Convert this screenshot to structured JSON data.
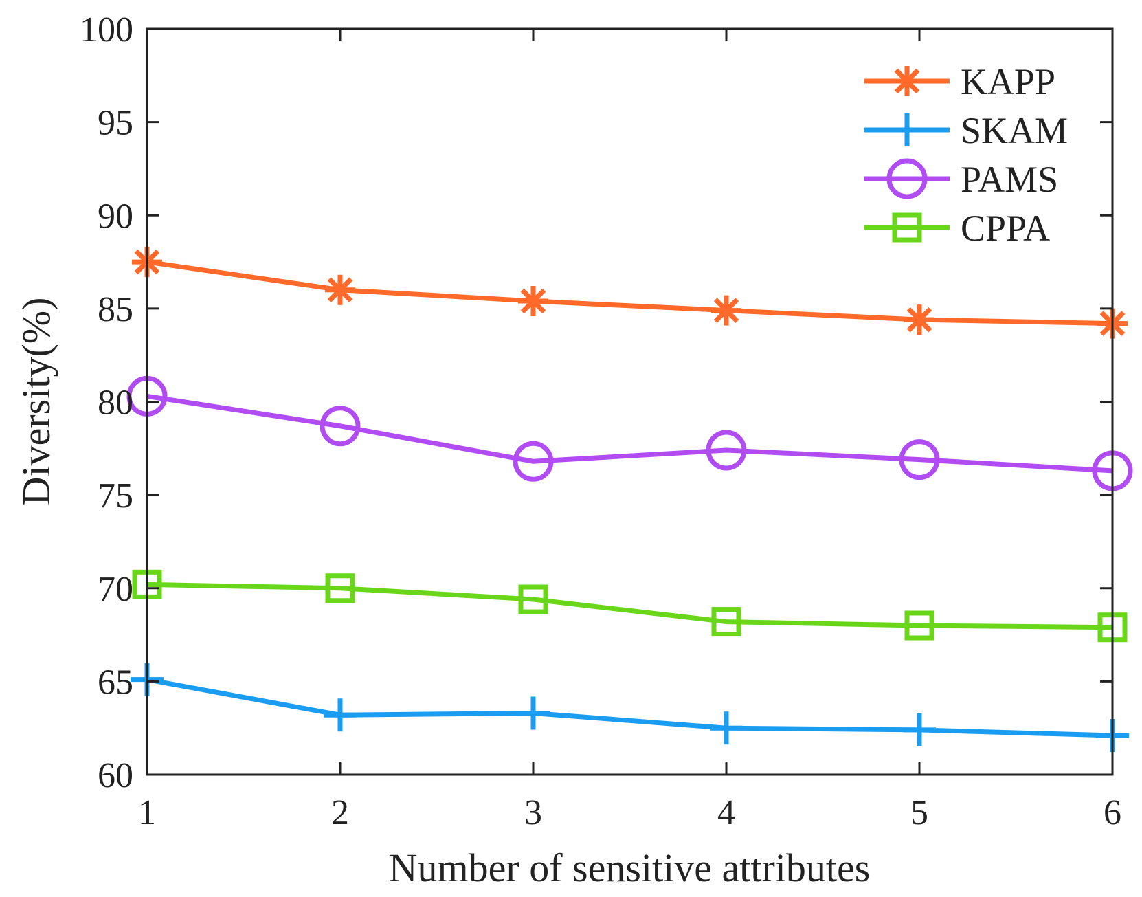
{
  "chart_data": {
    "type": "line",
    "xlabel": "Number of sensitive attributes",
    "ylabel": "Diversity(%)",
    "x": [
      1,
      2,
      3,
      4,
      5,
      6
    ],
    "xlim": [
      1,
      6
    ],
    "ylim": [
      60,
      100
    ],
    "xticks": [
      "1",
      "2",
      "3",
      "4",
      "5",
      "6"
    ],
    "yticks": [
      "60",
      "65",
      "70",
      "75",
      "80",
      "85",
      "90",
      "95",
      "100"
    ],
    "grid": false,
    "legend_position": "top-right",
    "series": [
      {
        "name": "KAPP",
        "marker": "asterisk",
        "color": "#ff6a2b",
        "values": [
          87.5,
          86.0,
          85.4,
          84.9,
          84.4,
          84.2
        ]
      },
      {
        "name": "SKAM",
        "marker": "plus",
        "color": "#1a9cf0",
        "values": [
          65.1,
          63.2,
          63.3,
          62.5,
          62.4,
          62.1
        ]
      },
      {
        "name": "PAMS",
        "marker": "circle",
        "color": "#b04cf2",
        "values": [
          80.3,
          78.7,
          76.8,
          77.4,
          76.9,
          76.3
        ]
      },
      {
        "name": "CPPA",
        "marker": "square",
        "color": "#6ad61a",
        "values": [
          70.2,
          70.0,
          69.4,
          68.2,
          68.0,
          67.9
        ]
      }
    ]
  }
}
